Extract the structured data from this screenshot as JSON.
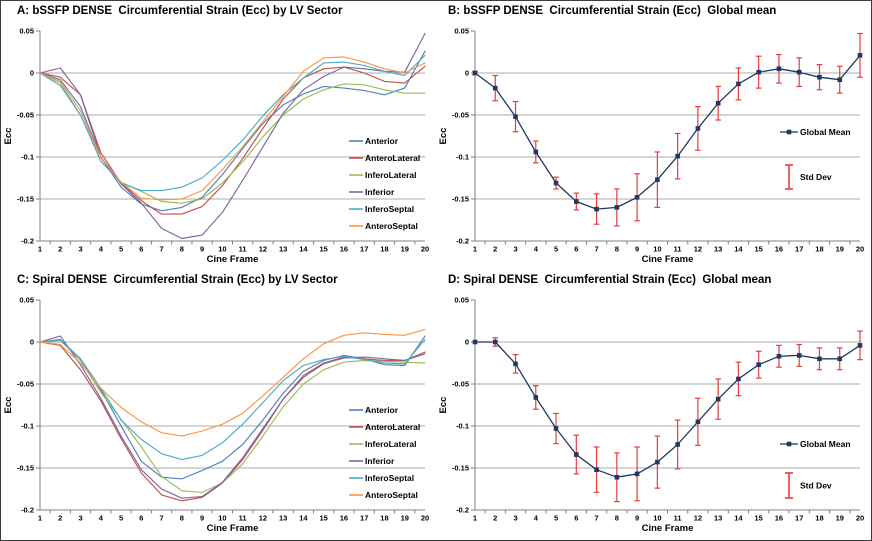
{
  "palette": {
    "grid_color": "#ABABAB",
    "axis_color": "#808080",
    "text_color": "#000000",
    "mean_line_color": "#1F3864",
    "std_dev_color": "#E83C3C",
    "sector_colors": [
      "#4F81BD",
      "#C0504D",
      "#9BBB59",
      "#8064A2",
      "#4BACC6",
      "#F79646"
    ]
  },
  "chart_data": [
    {
      "panel": "A",
      "type": "line",
      "title": "A: bSSFP DENSE  Circumferential Strain (Ecc) by LV Sector",
      "xlabel": "Cine Frame",
      "ylabel": "Ecc",
      "x": [
        1,
        2,
        3,
        4,
        5,
        6,
        7,
        8,
        9,
        10,
        11,
        12,
        13,
        14,
        15,
        16,
        17,
        18,
        19,
        20
      ],
      "ylim": [
        -0.2,
        0.05
      ],
      "y_ticks": [
        "0.05",
        "0",
        "-0.05",
        "-0.1",
        "-0.15",
        "-0.2"
      ],
      "grid": "horizontal",
      "legend_position": "right-middle",
      "series": [
        {
          "name": "Anterior",
          "color": "#4F81BD",
          "values": [
            0,
            -0.008,
            -0.04,
            -0.1,
            -0.136,
            -0.156,
            -0.164,
            -0.16,
            -0.148,
            -0.121,
            -0.09,
            -0.06,
            -0.038,
            -0.025,
            -0.016,
            -0.018,
            -0.021,
            -0.026,
            -0.018,
            0.026
          ]
        },
        {
          "name": "AnteroLateral",
          "color": "#C0504D",
          "values": [
            0,
            -0.005,
            -0.026,
            -0.095,
            -0.131,
            -0.152,
            -0.168,
            -0.168,
            -0.159,
            -0.134,
            -0.102,
            -0.066,
            -0.031,
            -0.006,
            0.005,
            0.007,
            0.0,
            -0.01,
            -0.012,
            0.008
          ]
        },
        {
          "name": "InferoLateral",
          "color": "#9BBB59",
          "values": [
            0,
            -0.012,
            -0.05,
            -0.101,
            -0.13,
            -0.141,
            -0.153,
            -0.155,
            -0.15,
            -0.131,
            -0.106,
            -0.076,
            -0.05,
            -0.031,
            -0.02,
            -0.013,
            -0.014,
            -0.02,
            -0.024,
            -0.024
          ]
        },
        {
          "name": "Inferior",
          "color": "#8064A2",
          "values": [
            0,
            0.006,
            -0.026,
            -0.1,
            -0.132,
            -0.155,
            -0.185,
            -0.197,
            -0.193,
            -0.166,
            -0.128,
            -0.088,
            -0.048,
            -0.02,
            -0.004,
            0.007,
            0.005,
            0.002,
            0.001,
            0.047
          ]
        },
        {
          "name": "InferoSeptal",
          "color": "#4BACC6",
          "values": [
            0,
            -0.015,
            -0.05,
            -0.105,
            -0.131,
            -0.14,
            -0.14,
            -0.136,
            -0.125,
            -0.104,
            -0.08,
            -0.051,
            -0.026,
            -0.006,
            0.012,
            0.013,
            0.009,
            0.002,
            -0.003,
            0.021
          ]
        },
        {
          "name": "AnteroSeptal",
          "color": "#F79646",
          "values": [
            0,
            -0.01,
            -0.045,
            -0.1,
            -0.13,
            -0.149,
            -0.151,
            -0.15,
            -0.14,
            -0.115,
            -0.088,
            -0.058,
            -0.028,
            0.002,
            0.018,
            0.019,
            0.013,
            0.005,
            0.0,
            0.012
          ]
        }
      ]
    },
    {
      "panel": "B",
      "type": "line-errorbar",
      "title": "B: bSSFP DENSE  Circumferential Strain (Ecc)  Global mean",
      "xlabel": "Cine Frame",
      "ylabel": "Ecc",
      "x": [
        1,
        2,
        3,
        4,
        5,
        6,
        7,
        8,
        9,
        10,
        11,
        12,
        13,
        14,
        15,
        16,
        17,
        18,
        19,
        20
      ],
      "ylim": [
        -0.2,
        0.05
      ],
      "y_ticks": [
        "0.05",
        "0",
        "-0.05",
        "-0.1",
        "-0.15",
        "-0.2"
      ],
      "grid": "horizontal",
      "legend_position": "right-middle",
      "series": [
        {
          "name": "Global Mean",
          "color": "#1F3864",
          "marker": "square",
          "values": [
            0.0,
            -0.018,
            -0.052,
            -0.094,
            -0.131,
            -0.153,
            -0.162,
            -0.16,
            -0.148,
            -0.127,
            -0.099,
            -0.066,
            -0.036,
            -0.013,
            0.001,
            0.005,
            0.001,
            -0.005,
            -0.008,
            0.021
          ]
        }
      ],
      "std_dev": {
        "label": "Std Dev",
        "color": "#E83C3C",
        "values": [
          0.002,
          0.015,
          0.018,
          0.013,
          0.007,
          0.01,
          0.018,
          0.022,
          0.028,
          0.033,
          0.027,
          0.026,
          0.02,
          0.019,
          0.019,
          0.017,
          0.017,
          0.015,
          0.016,
          0.026
        ]
      }
    },
    {
      "panel": "C",
      "type": "line",
      "title": "C: Spiral DENSE  Circumferential Strain (Ecc) by LV Sector",
      "xlabel": "Cine Frame",
      "ylabel": "Ecc",
      "x": [
        1,
        2,
        3,
        4,
        5,
        6,
        7,
        8,
        9,
        10,
        11,
        12,
        13,
        14,
        15,
        16,
        17,
        18,
        19,
        20
      ],
      "ylim": [
        -0.2,
        0.05
      ],
      "y_ticks": [
        "0.05",
        "0",
        "-0.05",
        "-0.1",
        "-0.15",
        "-0.2"
      ],
      "grid": "horizontal",
      "legend_position": "right-middle",
      "series": [
        {
          "name": "Anterior",
          "color": "#4F81BD",
          "values": [
            0,
            0.003,
            -0.02,
            -0.057,
            -0.1,
            -0.142,
            -0.161,
            -0.163,
            -0.153,
            -0.142,
            -0.122,
            -0.093,
            -0.061,
            -0.035,
            -0.022,
            -0.016,
            -0.02,
            -0.027,
            -0.028,
            0.007
          ]
        },
        {
          "name": "AnteroLateral",
          "color": "#C0504D",
          "values": [
            0,
            -0.004,
            -0.033,
            -0.07,
            -0.115,
            -0.156,
            -0.182,
            -0.189,
            -0.185,
            -0.168,
            -0.14,
            -0.105,
            -0.068,
            -0.04,
            -0.025,
            -0.018,
            -0.02,
            -0.022,
            -0.022,
            -0.012
          ]
        },
        {
          "name": "InferoLateral",
          "color": "#9BBB59",
          "values": [
            0,
            0.002,
            -0.022,
            -0.06,
            -0.092,
            -0.125,
            -0.16,
            -0.177,
            -0.179,
            -0.168,
            -0.145,
            -0.112,
            -0.077,
            -0.05,
            -0.033,
            -0.024,
            -0.022,
            -0.023,
            -0.024,
            -0.025
          ]
        },
        {
          "name": "Inferior",
          "color": "#8064A2",
          "values": [
            0,
            0.007,
            -0.027,
            -0.067,
            -0.112,
            -0.152,
            -0.175,
            -0.186,
            -0.184,
            -0.167,
            -0.138,
            -0.103,
            -0.068,
            -0.042,
            -0.026,
            -0.019,
            -0.018,
            -0.02,
            -0.022,
            -0.014
          ]
        },
        {
          "name": "InferoSeptal",
          "color": "#4BACC6",
          "values": [
            0,
            0.002,
            -0.02,
            -0.055,
            -0.093,
            -0.116,
            -0.133,
            -0.14,
            -0.135,
            -0.12,
            -0.098,
            -0.072,
            -0.046,
            -0.028,
            -0.021,
            -0.017,
            -0.021,
            -0.025,
            -0.026,
            0.003
          ]
        },
        {
          "name": "AnteroSeptal",
          "color": "#F79646",
          "values": [
            0,
            -0.003,
            -0.025,
            -0.055,
            -0.078,
            -0.095,
            -0.108,
            -0.112,
            -0.106,
            -0.098,
            -0.085,
            -0.064,
            -0.042,
            -0.02,
            -0.002,
            0.008,
            0.011,
            0.009,
            0.008,
            0.015
          ]
        }
      ]
    },
    {
      "panel": "D",
      "type": "line-errorbar",
      "title": "D: Spiral DENSE  Circumferential Strain (Ecc)  Global mean",
      "xlabel": "Cine Frame",
      "ylabel": "Ecc",
      "x": [
        1,
        2,
        3,
        4,
        5,
        6,
        7,
        8,
        9,
        10,
        11,
        12,
        13,
        14,
        15,
        16,
        17,
        18,
        19,
        20
      ],
      "ylim": [
        -0.2,
        0.05
      ],
      "y_ticks": [
        "0.05",
        "0",
        "-0.05",
        "-0.1",
        "-0.15",
        "-0.2"
      ],
      "grid": "horizontal",
      "legend_position": "right-middle",
      "series": [
        {
          "name": "Global Mean",
          "color": "#1F3864",
          "marker": "square",
          "values": [
            0.0,
            0.0,
            -0.026,
            -0.066,
            -0.103,
            -0.134,
            -0.152,
            -0.161,
            -0.157,
            -0.143,
            -0.122,
            -0.095,
            -0.068,
            -0.044,
            -0.027,
            -0.017,
            -0.016,
            -0.02,
            -0.02,
            -0.004
          ]
        }
      ],
      "std_dev": {
        "label": "Std Dev",
        "color": "#E83C3C",
        "values": [
          0.001,
          0.005,
          0.011,
          0.014,
          0.018,
          0.023,
          0.027,
          0.029,
          0.032,
          0.031,
          0.029,
          0.028,
          0.024,
          0.02,
          0.016,
          0.013,
          0.013,
          0.013,
          0.013,
          0.017
        ]
      }
    }
  ]
}
